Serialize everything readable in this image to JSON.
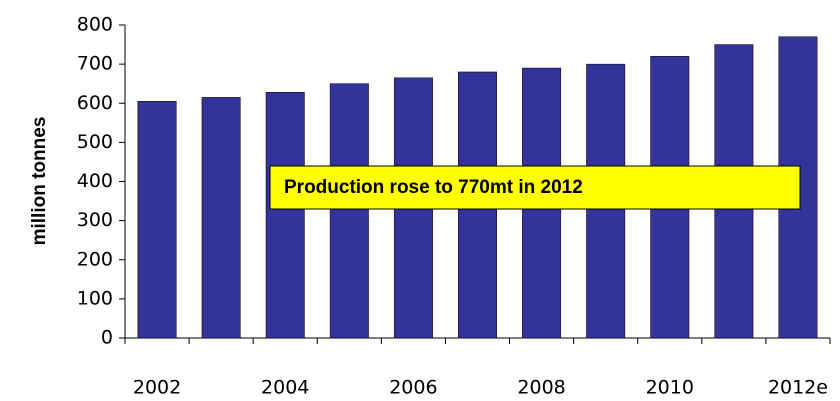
{
  "chart_data": {
    "type": "bar",
    "categories": [
      "2002",
      null,
      "2004",
      null,
      "2006",
      null,
      "2008",
      null,
      "2010",
      null,
      "2012e"
    ],
    "values": [
      605,
      615,
      628,
      650,
      665,
      680,
      690,
      700,
      720,
      750,
      770
    ],
    "color": "#333399",
    "y_label": "million tonnes",
    "annotation": "Production rose to 770mt in 2012",
    "ylim": [
      0,
      800
    ],
    "yticks": [
      0,
      100,
      200,
      300,
      400,
      500,
      600,
      700,
      800
    ],
    "grid": false
  }
}
